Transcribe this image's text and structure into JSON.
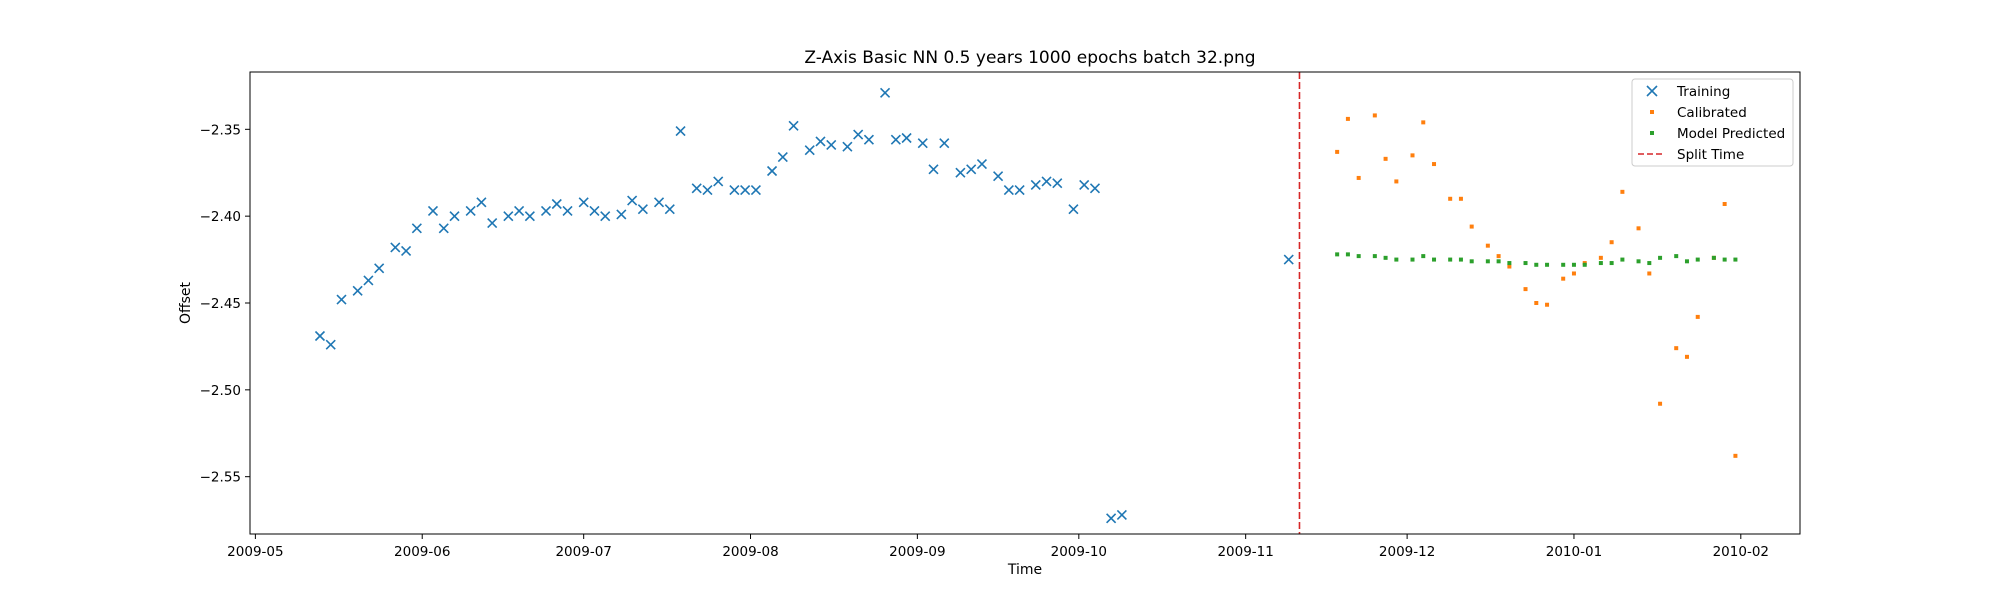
{
  "chart_data": {
    "type": "scatter",
    "title": "Z-Axis Basic NN 0.5 years 1000 epochs batch 32.png",
    "xlabel": "Time",
    "ylabel": "Offset",
    "x_ticks": [
      "2009-05",
      "2009-06",
      "2009-07",
      "2009-08",
      "2009-09",
      "2009-10",
      "2009-11",
      "2009-12",
      "2010-01",
      "2010-02"
    ],
    "x_tick_dates": [
      "2009-05-01",
      "2009-06-01",
      "2009-07-01",
      "2009-08-01",
      "2009-09-01",
      "2009-10-01",
      "2009-11-01",
      "2009-12-01",
      "2010-01-01",
      "2010-02-01"
    ],
    "xlim": [
      "2009-04-30",
      "2010-02-12"
    ],
    "y_ticks": [
      "−2.55",
      "−2.50",
      "−2.45",
      "−2.40",
      "−2.35"
    ],
    "y_tick_values": [
      -2.55,
      -2.5,
      -2.45,
      -2.4,
      -2.35
    ],
    "ylim": [
      -2.583,
      -2.317
    ],
    "grid": false,
    "legend_position": "top-right",
    "split_time": "2009-11-11",
    "series": [
      {
        "name": "Training",
        "marker": "x",
        "color": "#1f77b4",
        "points": [
          [
            "2009-05-13",
            -2.469
          ],
          [
            "2009-05-15",
            -2.474
          ],
          [
            "2009-05-17",
            -2.448
          ],
          [
            "2009-05-20",
            -2.443
          ],
          [
            "2009-05-22",
            -2.437
          ],
          [
            "2009-05-24",
            -2.43
          ],
          [
            "2009-05-27",
            -2.418
          ],
          [
            "2009-05-29",
            -2.42
          ],
          [
            "2009-05-31",
            -2.407
          ],
          [
            "2009-06-03",
            -2.397
          ],
          [
            "2009-06-05",
            -2.407
          ],
          [
            "2009-06-07",
            -2.4
          ],
          [
            "2009-06-10",
            -2.397
          ],
          [
            "2009-06-12",
            -2.392
          ],
          [
            "2009-06-14",
            -2.404
          ],
          [
            "2009-06-17",
            -2.4
          ],
          [
            "2009-06-19",
            -2.397
          ],
          [
            "2009-06-21",
            -2.4
          ],
          [
            "2009-06-24",
            -2.397
          ],
          [
            "2009-06-26",
            -2.393
          ],
          [
            "2009-06-28",
            -2.397
          ],
          [
            "2009-07-01",
            -2.392
          ],
          [
            "2009-07-03",
            -2.397
          ],
          [
            "2009-07-05",
            -2.4
          ],
          [
            "2009-07-08",
            -2.399
          ],
          [
            "2009-07-10",
            -2.391
          ],
          [
            "2009-07-12",
            -2.396
          ],
          [
            "2009-07-15",
            -2.392
          ],
          [
            "2009-07-17",
            -2.396
          ],
          [
            "2009-07-19",
            -2.351
          ],
          [
            "2009-07-22",
            -2.384
          ],
          [
            "2009-07-24",
            -2.385
          ],
          [
            "2009-07-26",
            -2.38
          ],
          [
            "2009-07-29",
            -2.385
          ],
          [
            "2009-07-31",
            -2.385
          ],
          [
            "2009-08-02",
            -2.385
          ],
          [
            "2009-08-05",
            -2.374
          ],
          [
            "2009-08-07",
            -2.366
          ],
          [
            "2009-08-09",
            -2.348
          ],
          [
            "2009-08-12",
            -2.362
          ],
          [
            "2009-08-14",
            -2.357
          ],
          [
            "2009-08-16",
            -2.359
          ],
          [
            "2009-08-19",
            -2.36
          ],
          [
            "2009-08-21",
            -2.353
          ],
          [
            "2009-08-23",
            -2.356
          ],
          [
            "2009-08-26",
            -2.329
          ],
          [
            "2009-08-28",
            -2.356
          ],
          [
            "2009-08-30",
            -2.355
          ],
          [
            "2009-09-02",
            -2.358
          ],
          [
            "2009-09-04",
            -2.373
          ],
          [
            "2009-09-06",
            -2.358
          ],
          [
            "2009-09-09",
            -2.375
          ],
          [
            "2009-09-11",
            -2.373
          ],
          [
            "2009-09-13",
            -2.37
          ],
          [
            "2009-09-16",
            -2.377
          ],
          [
            "2009-09-18",
            -2.385
          ],
          [
            "2009-09-20",
            -2.385
          ],
          [
            "2009-09-23",
            -2.382
          ],
          [
            "2009-09-25",
            -2.38
          ],
          [
            "2009-09-27",
            -2.381
          ],
          [
            "2009-09-30",
            -2.396
          ],
          [
            "2009-10-02",
            -2.382
          ],
          [
            "2009-10-04",
            -2.384
          ],
          [
            "2009-10-07",
            -2.574
          ],
          [
            "2009-10-09",
            -2.572
          ],
          [
            "2009-11-09",
            -2.425
          ]
        ]
      },
      {
        "name": "Calibrated",
        "marker": "square",
        "color": "#ff7f0e",
        "points": [
          [
            "2009-11-18",
            -2.363
          ],
          [
            "2009-11-20",
            -2.344
          ],
          [
            "2009-11-22",
            -2.378
          ],
          [
            "2009-11-25",
            -2.342
          ],
          [
            "2009-11-27",
            -2.367
          ],
          [
            "2009-11-29",
            -2.38
          ],
          [
            "2009-12-02",
            -2.365
          ],
          [
            "2009-12-04",
            -2.346
          ],
          [
            "2009-12-06",
            -2.37
          ],
          [
            "2009-12-09",
            -2.39
          ],
          [
            "2009-12-11",
            -2.39
          ],
          [
            "2009-12-13",
            -2.406
          ],
          [
            "2009-12-16",
            -2.417
          ],
          [
            "2009-12-18",
            -2.423
          ],
          [
            "2009-12-20",
            -2.429
          ],
          [
            "2009-12-23",
            -2.442
          ],
          [
            "2009-12-25",
            -2.45
          ],
          [
            "2009-12-27",
            -2.451
          ],
          [
            "2009-12-30",
            -2.436
          ],
          [
            "2010-01-01",
            -2.433
          ],
          [
            "2010-01-03",
            -2.427
          ],
          [
            "2010-01-06",
            -2.424
          ],
          [
            "2010-01-08",
            -2.415
          ],
          [
            "2010-01-10",
            -2.386
          ],
          [
            "2010-01-13",
            -2.407
          ],
          [
            "2010-01-15",
            -2.433
          ],
          [
            "2010-01-17",
            -2.508
          ],
          [
            "2010-01-20",
            -2.476
          ],
          [
            "2010-01-22",
            -2.481
          ],
          [
            "2010-01-24",
            -2.458
          ],
          [
            "2010-01-27",
            -2.424
          ],
          [
            "2010-01-29",
            -2.393
          ],
          [
            "2010-01-31",
            -2.538
          ]
        ]
      },
      {
        "name": "Model Predicted",
        "marker": "square",
        "color": "#2ca02c",
        "points": [
          [
            "2009-11-18",
            -2.422
          ],
          [
            "2009-11-20",
            -2.422
          ],
          [
            "2009-11-22",
            -2.423
          ],
          [
            "2009-11-25",
            -2.423
          ],
          [
            "2009-11-27",
            -2.424
          ],
          [
            "2009-11-29",
            -2.425
          ],
          [
            "2009-12-02",
            -2.425
          ],
          [
            "2009-12-04",
            -2.423
          ],
          [
            "2009-12-06",
            -2.425
          ],
          [
            "2009-12-09",
            -2.425
          ],
          [
            "2009-12-11",
            -2.425
          ],
          [
            "2009-12-13",
            -2.426
          ],
          [
            "2009-12-16",
            -2.426
          ],
          [
            "2009-12-18",
            -2.426
          ],
          [
            "2009-12-20",
            -2.427
          ],
          [
            "2009-12-23",
            -2.427
          ],
          [
            "2009-12-25",
            -2.428
          ],
          [
            "2009-12-27",
            -2.428
          ],
          [
            "2009-12-30",
            -2.428
          ],
          [
            "2010-01-01",
            -2.428
          ],
          [
            "2010-01-03",
            -2.428
          ],
          [
            "2010-01-06",
            -2.427
          ],
          [
            "2010-01-08",
            -2.427
          ],
          [
            "2010-01-10",
            -2.425
          ],
          [
            "2010-01-13",
            -2.426
          ],
          [
            "2010-01-15",
            -2.427
          ],
          [
            "2010-01-17",
            -2.424
          ],
          [
            "2010-01-20",
            -2.423
          ],
          [
            "2010-01-22",
            -2.426
          ],
          [
            "2010-01-24",
            -2.425
          ],
          [
            "2010-01-27",
            -2.424
          ],
          [
            "2010-01-29",
            -2.425
          ],
          [
            "2010-01-31",
            -2.425
          ]
        ]
      }
    ],
    "split_line": {
      "name": "Split Time",
      "style": "dashed",
      "color": "#d62728"
    }
  }
}
